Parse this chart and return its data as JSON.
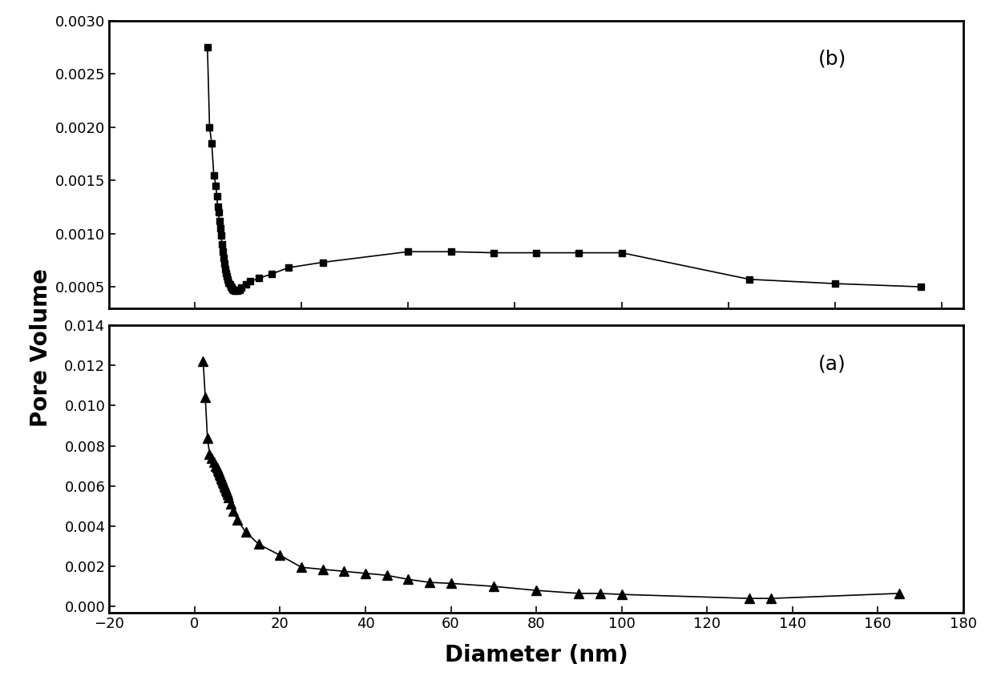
{
  "title_b": "(b)",
  "title_a": "(a)",
  "xlabel": "Diameter (nm)",
  "ylabel": "Pore Volume",
  "background_color": "#ffffff",
  "b_x": [
    3.0,
    3.5,
    4.0,
    4.5,
    5.0,
    5.2,
    5.4,
    5.6,
    5.8,
    6.0,
    6.2,
    6.4,
    6.6,
    6.8,
    7.0,
    7.2,
    7.4,
    7.6,
    7.8,
    8.0,
    8.2,
    8.4,
    8.6,
    8.8,
    9.0,
    9.5,
    10.0,
    10.5,
    11.0,
    12.0,
    13.0,
    15.0,
    18.0,
    22.0,
    30.0,
    50.0,
    60.0,
    70.0,
    80.0,
    90.0,
    100.0,
    130.0,
    150.0,
    170.0
  ],
  "b_y": [
    0.00275,
    0.002,
    0.00185,
    0.00155,
    0.00145,
    0.00135,
    0.00125,
    0.0012,
    0.00112,
    0.00105,
    0.00098,
    0.0009,
    0.00083,
    0.00077,
    0.00072,
    0.00067,
    0.00063,
    0.0006,
    0.00057,
    0.00054,
    0.00052,
    0.0005,
    0.00049,
    0.00048,
    0.00047,
    0.00046,
    0.00046,
    0.00047,
    0.00049,
    0.00052,
    0.00055,
    0.00058,
    0.00062,
    0.00068,
    0.00073,
    0.00083,
    0.00083,
    0.00082,
    0.00082,
    0.00082,
    0.00082,
    0.00057,
    0.00053,
    0.0005
  ],
  "a_x": [
    2.0,
    2.5,
    3.0,
    3.5,
    4.0,
    4.5,
    5.0,
    5.2,
    5.4,
    5.6,
    5.8,
    6.0,
    6.2,
    6.4,
    6.6,
    6.8,
    7.0,
    7.2,
    7.4,
    7.6,
    7.8,
    8.0,
    8.5,
    9.0,
    10.0,
    12.0,
    15.0,
    20.0,
    25.0,
    30.0,
    35.0,
    40.0,
    45.0,
    50.0,
    55.0,
    60.0,
    70.0,
    80.0,
    90.0,
    95.0,
    100.0,
    130.0,
    135.0,
    165.0
  ],
  "a_y": [
    0.0122,
    0.0104,
    0.0084,
    0.0076,
    0.0074,
    0.0072,
    0.007,
    0.0069,
    0.0068,
    0.0067,
    0.0066,
    0.0065,
    0.0064,
    0.0063,
    0.0062,
    0.0061,
    0.006,
    0.0059,
    0.0058,
    0.0057,
    0.0056,
    0.00545,
    0.0051,
    0.00475,
    0.0043,
    0.0037,
    0.0031,
    0.00255,
    0.00195,
    0.00185,
    0.00175,
    0.00165,
    0.00155,
    0.00135,
    0.0012,
    0.00115,
    0.001,
    0.0008,
    0.00065,
    0.00065,
    0.0006,
    0.0004,
    0.0004,
    0.00065
  ],
  "b_ylim": [
    0.0003,
    0.003
  ],
  "a_ylim": [
    -0.0003,
    0.014
  ],
  "xlim": [
    -20,
    180
  ],
  "b_yticks": [
    0.0005,
    0.001,
    0.0015,
    0.002,
    0.0025,
    0.003
  ],
  "a_yticks": [
    0.0,
    0.002,
    0.004,
    0.006,
    0.008,
    0.01,
    0.012,
    0.014
  ],
  "xticks": [
    -20,
    0,
    20,
    40,
    60,
    80,
    100,
    120,
    140,
    160,
    180
  ]
}
